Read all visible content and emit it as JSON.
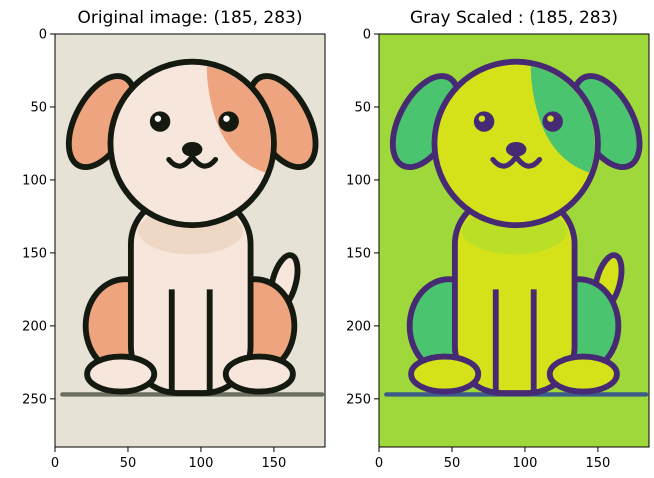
{
  "chart_data": [
    {
      "type": "image",
      "title": "Original image: (185, 283)",
      "image_size": [
        185,
        283
      ],
      "xlim": [
        0,
        185
      ],
      "ylim": [
        283,
        0
      ],
      "xticks": [
        0,
        50,
        100,
        150
      ],
      "yticks": [
        0,
        50,
        100,
        150,
        200,
        250
      ],
      "colors": {
        "background": "#e6e2d6",
        "outline": "#141a10",
        "body": "#f7e6dc",
        "ear_patch": "#eea47e",
        "chest_shade": "#eacbb4",
        "ground": "#6b6e60"
      }
    },
    {
      "type": "image",
      "title": "Gray Scaled : (185, 283)",
      "image_size": [
        185,
        283
      ],
      "xlim": [
        0,
        185
      ],
      "ylim": [
        283,
        0
      ],
      "xticks": [
        0,
        50,
        100,
        150
      ],
      "yticks": [
        0,
        50,
        100,
        150,
        200,
        250
      ],
      "colormap": "viridis",
      "colors": {
        "background": "#9fd83a",
        "outline": "#462a73",
        "body": "#d5e21a",
        "ear_patch": "#4bc46f",
        "chest_shade": "#a6db33",
        "ground": "#3b5c8a"
      }
    }
  ]
}
